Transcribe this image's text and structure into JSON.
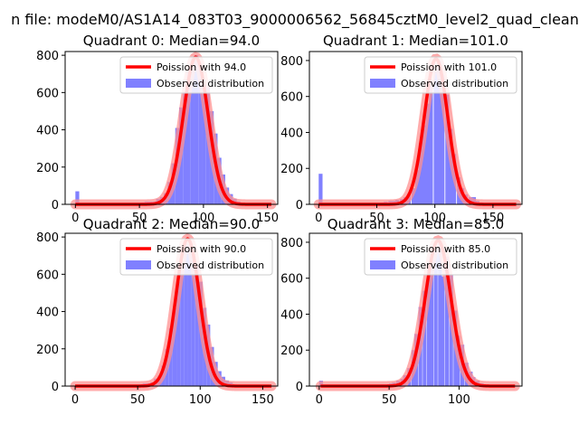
{
  "figure": {
    "suptitle": "n file: modeM0/AS1A14_083T03_9000006562_56845cztM0_level2_quad_clean"
  },
  "chart_data": [
    {
      "type": "bar",
      "title": "Quadrant 0: Median=94.0",
      "xlim": [
        -8,
        158
      ],
      "ylim": [
        0,
        820
      ],
      "xticks": [
        0,
        50,
        100,
        150
      ],
      "yticks": [
        0,
        200,
        400,
        600,
        800
      ],
      "bin_width": 3,
      "bins": [
        {
          "x": 0,
          "count": 70
        },
        {
          "x": 51,
          "count": 10
        },
        {
          "x": 54,
          "count": 15
        },
        {
          "x": 57,
          "count": 15
        },
        {
          "x": 60,
          "count": 15
        },
        {
          "x": 63,
          "count": 30
        },
        {
          "x": 66,
          "count": 40
        },
        {
          "x": 69,
          "count": 60
        },
        {
          "x": 72,
          "count": 120
        },
        {
          "x": 75,
          "count": 220
        },
        {
          "x": 78,
          "count": 410
        },
        {
          "x": 81,
          "count": 520
        },
        {
          "x": 84,
          "count": 605
        },
        {
          "x": 87,
          "count": 710
        },
        {
          "x": 90,
          "count": 790
        },
        {
          "x": 93,
          "count": 800
        },
        {
          "x": 96,
          "count": 740
        },
        {
          "x": 99,
          "count": 640
        },
        {
          "x": 102,
          "count": 630
        },
        {
          "x": 105,
          "count": 500
        },
        {
          "x": 108,
          "count": 380
        },
        {
          "x": 111,
          "count": 250
        },
        {
          "x": 114,
          "count": 160
        },
        {
          "x": 117,
          "count": 90
        },
        {
          "x": 120,
          "count": 55
        },
        {
          "x": 123,
          "count": 30
        },
        {
          "x": 126,
          "count": 15
        }
      ],
      "poisson_lambda": 94.0,
      "poisson_peak": 790,
      "legend": [
        "Poission with 94.0",
        "Observed distribution"
      ]
    },
    {
      "type": "bar",
      "title": "Quadrant 1: Median=101.0",
      "xlim": [
        -8,
        175
      ],
      "ylim": [
        0,
        850
      ],
      "xticks": [
        0,
        50,
        100,
        150
      ],
      "yticks": [
        0,
        200,
        400,
        600,
        800
      ],
      "bin_width": 3.3,
      "bins": [
        {
          "x": 0,
          "count": 170
        },
        {
          "x": 53,
          "count": 10
        },
        {
          "x": 56,
          "count": 15
        },
        {
          "x": 60,
          "count": 20
        },
        {
          "x": 63,
          "count": 20
        },
        {
          "x": 66,
          "count": 25
        },
        {
          "x": 70,
          "count": 30
        },
        {
          "x": 73,
          "count": 40
        },
        {
          "x": 76,
          "count": 60
        },
        {
          "x": 80,
          "count": 90
        },
        {
          "x": 83,
          "count": 190
        },
        {
          "x": 86,
          "count": 340
        },
        {
          "x": 89,
          "count": 440
        },
        {
          "x": 92,
          "count": 560
        },
        {
          "x": 95,
          "count": 660
        },
        {
          "x": 99,
          "count": 740
        },
        {
          "x": 102,
          "count": 800
        },
        {
          "x": 105,
          "count": 720
        },
        {
          "x": 109,
          "count": 610
        },
        {
          "x": 112,
          "count": 420
        },
        {
          "x": 115,
          "count": 280
        },
        {
          "x": 119,
          "count": 150
        },
        {
          "x": 122,
          "count": 90
        },
        {
          "x": 125,
          "count": 55
        },
        {
          "x": 129,
          "count": 40
        },
        {
          "x": 132,
          "count": 40
        },
        {
          "x": 135,
          "count": 20
        },
        {
          "x": 139,
          "count": 10
        }
      ],
      "poisson_lambda": 101.0,
      "poisson_peak": 810,
      "legend": [
        "Poission with 101.0",
        "Observed distribution"
      ]
    },
    {
      "type": "bar",
      "title": "Quadrant 2: Median=90.0",
      "xlim": [
        -8,
        162
      ],
      "ylim": [
        0,
        820
      ],
      "xticks": [
        0,
        50,
        100,
        150
      ],
      "yticks": [
        0,
        200,
        400,
        600,
        800
      ],
      "bin_width": 3,
      "bins": [
        {
          "x": 51,
          "count": 10
        },
        {
          "x": 54,
          "count": 15
        },
        {
          "x": 57,
          "count": 15
        },
        {
          "x": 60,
          "count": 20
        },
        {
          "x": 63,
          "count": 40
        },
        {
          "x": 66,
          "count": 55
        },
        {
          "x": 69,
          "count": 110
        },
        {
          "x": 72,
          "count": 200
        },
        {
          "x": 75,
          "count": 310
        },
        {
          "x": 78,
          "count": 420
        },
        {
          "x": 81,
          "count": 560
        },
        {
          "x": 84,
          "count": 620
        },
        {
          "x": 87,
          "count": 770
        },
        {
          "x": 90,
          "count": 760
        },
        {
          "x": 93,
          "count": 700
        },
        {
          "x": 96,
          "count": 650
        },
        {
          "x": 99,
          "count": 560
        },
        {
          "x": 102,
          "count": 420
        },
        {
          "x": 105,
          "count": 330
        },
        {
          "x": 108,
          "count": 210
        },
        {
          "x": 111,
          "count": 130
        },
        {
          "x": 114,
          "count": 80
        },
        {
          "x": 117,
          "count": 50
        },
        {
          "x": 120,
          "count": 30
        },
        {
          "x": 123,
          "count": 20
        },
        {
          "x": 126,
          "count": 10
        }
      ],
      "poisson_lambda": 90.0,
      "poisson_peak": 790,
      "legend": [
        "Poission with 90.0",
        "Observed distribution"
      ]
    },
    {
      "type": "bar",
      "title": "Quadrant 3: Median=85.0",
      "xlim": [
        -7,
        145
      ],
      "ylim": [
        0,
        850
      ],
      "xticks": [
        0,
        50,
        100
      ],
      "yticks": [
        0,
        200,
        400,
        600,
        800
      ],
      "bin_width": 2.7,
      "bins": [
        {
          "x": 0,
          "count": 30
        },
        {
          "x": 44,
          "count": 10
        },
        {
          "x": 47,
          "count": 10
        },
        {
          "x": 50,
          "count": 15
        },
        {
          "x": 52,
          "count": 20
        },
        {
          "x": 55,
          "count": 30
        },
        {
          "x": 58,
          "count": 40
        },
        {
          "x": 60,
          "count": 60
        },
        {
          "x": 63,
          "count": 100
        },
        {
          "x": 66,
          "count": 200
        },
        {
          "x": 68,
          "count": 290
        },
        {
          "x": 71,
          "count": 440
        },
        {
          "x": 74,
          "count": 530
        },
        {
          "x": 77,
          "count": 650
        },
        {
          "x": 79,
          "count": 720
        },
        {
          "x": 82,
          "count": 760
        },
        {
          "x": 85,
          "count": 800
        },
        {
          "x": 87,
          "count": 610
        },
        {
          "x": 90,
          "count": 720
        },
        {
          "x": 93,
          "count": 620
        },
        {
          "x": 96,
          "count": 420
        },
        {
          "x": 98,
          "count": 280
        },
        {
          "x": 101,
          "count": 230
        },
        {
          "x": 104,
          "count": 130
        },
        {
          "x": 107,
          "count": 80
        },
        {
          "x": 109,
          "count": 50
        },
        {
          "x": 112,
          "count": 30
        },
        {
          "x": 115,
          "count": 15
        },
        {
          "x": 118,
          "count": 10
        }
      ],
      "poisson_lambda": 85.0,
      "poisson_peak": 810,
      "legend": [
        "Poission with 85.0",
        "Observed distribution"
      ]
    }
  ],
  "colors": {
    "bars": "#8080ff",
    "poisson": "#ff0000",
    "poisson_band": "#ff9090",
    "axes": "#000000",
    "legend_border": "#cccccc"
  }
}
